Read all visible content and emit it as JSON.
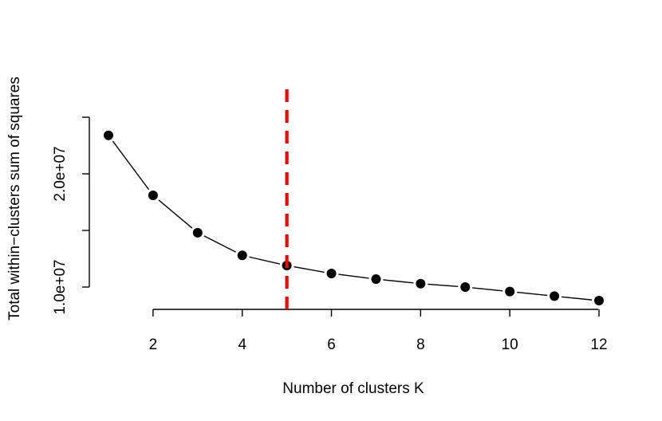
{
  "chart_data": {
    "type": "line",
    "title": "",
    "xlabel": "Number of clusters K",
    "ylabel": "Total within−clusters sum of squares",
    "x": [
      1,
      2,
      3,
      4,
      5,
      6,
      7,
      8,
      9,
      10,
      11,
      12
    ],
    "values": [
      23400000,
      18100000,
      14800000,
      12800000,
      11900000,
      11200000,
      10700000,
      10300000,
      10000000,
      9600000,
      9200000,
      8800000
    ],
    "xlim": [
      0.5,
      12.5
    ],
    "ylim": [
      8600000,
      24000000
    ],
    "xticks": [
      2,
      4,
      6,
      8,
      10,
      12
    ],
    "xtick_labels": [
      "2",
      "4",
      "6",
      "8",
      "10",
      "12"
    ],
    "yticks": [
      10000000,
      15000000,
      20000000,
      25000000
    ],
    "ytick_labels": [
      "1.0e+07",
      "",
      "2.0e+07",
      ""
    ],
    "line_style": "dashed",
    "marker": "filled-circle",
    "grid": false,
    "reference_line": {
      "axis": "x",
      "value": 5,
      "color": "#ff0000",
      "style": "dashed"
    }
  }
}
